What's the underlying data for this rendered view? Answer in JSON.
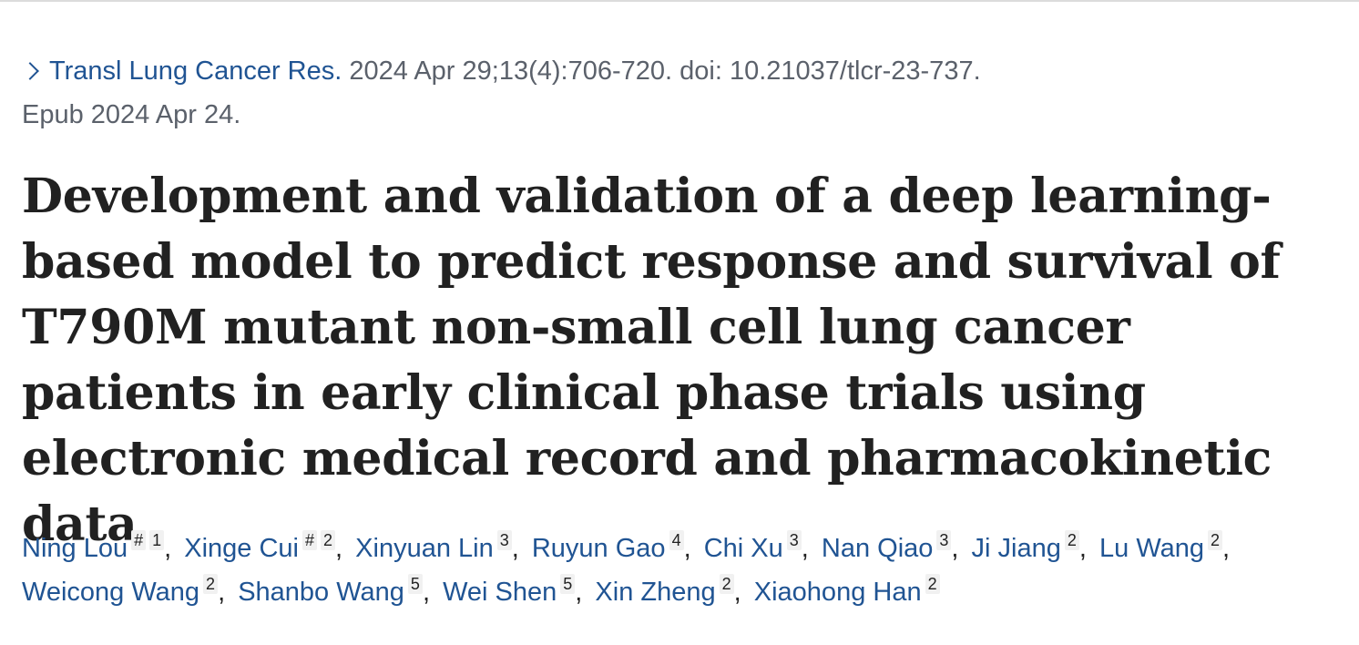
{
  "citation": {
    "journal": "Transl Lung Cancer Res.",
    "details": "2024 Apr 29;13(4):706-720. doi: 10.21037/tlcr-23-737.",
    "epub": "Epub 2024 Apr 24."
  },
  "title": "Development and validation of a deep learning-based model to predict response and survival of T790M mutant non-small cell lung cancer patients in early clinical phase trials using electronic medical record and pharmacokinetic data",
  "authors": [
    {
      "name": "Ning Lou",
      "equal": "#",
      "aff": "1"
    },
    {
      "name": "Xinge Cui",
      "equal": "#",
      "aff": "2"
    },
    {
      "name": "Xinyuan Lin",
      "aff": "3"
    },
    {
      "name": "Ruyun Gao",
      "aff": "4"
    },
    {
      "name": "Chi Xu",
      "aff": "3"
    },
    {
      "name": "Nan Qiao",
      "aff": "3"
    },
    {
      "name": "Ji Jiang",
      "aff": "2"
    },
    {
      "name": "Lu Wang",
      "aff": "2"
    },
    {
      "name": "Weicong Wang",
      "aff": "2"
    },
    {
      "name": "Shanbo Wang",
      "aff": "5"
    },
    {
      "name": "Wei Shen",
      "aff": "5"
    },
    {
      "name": "Xin Zheng",
      "aff": "2"
    },
    {
      "name": "Xiaohong Han",
      "aff": "2"
    }
  ],
  "colors": {
    "link": "#205493",
    "text": "#212121",
    "muted": "#5b616b"
  }
}
